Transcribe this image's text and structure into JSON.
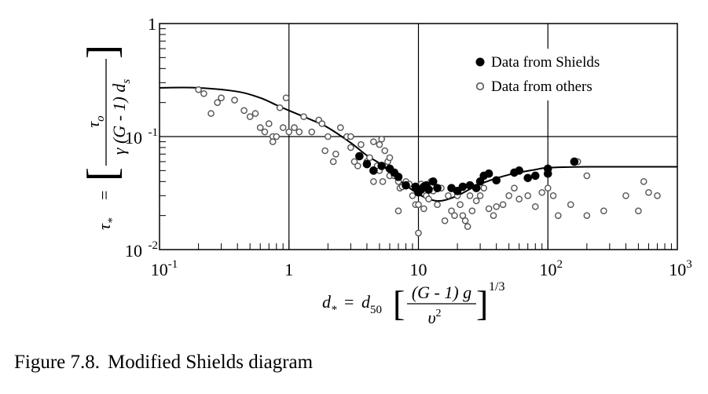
{
  "chart_data": {
    "type": "scatter",
    "title": "",
    "x_scale": "log",
    "y_scale": "log",
    "xlim": [
      0.1,
      1000
    ],
    "ylim": [
      0.01,
      1
    ],
    "grid": "major decades only",
    "legend_position": "top-right",
    "x_ticks": [
      {
        "base": "10",
        "exp": "-1"
      },
      {
        "base": "1",
        "exp": ""
      },
      {
        "base": "10",
        "exp": ""
      },
      {
        "base": "10",
        "exp": "2"
      },
      {
        "base": "10",
        "exp": "3"
      }
    ],
    "y_ticks": [
      {
        "base": "10",
        "exp": "-2"
      },
      {
        "base": "10",
        "exp": "-1"
      },
      {
        "base": "1",
        "exp": ""
      }
    ],
    "xlabel": {
      "lhs": "d",
      "lhs_sub": "*",
      "eq": "=",
      "d50": "d",
      "d50_sub": "50",
      "numerator": "(G - 1) g",
      "denominator": "υ",
      "denominator_sup": "2",
      "power": "1/3"
    },
    "ylabel": {
      "lhs": "τ",
      "lhs_sub": "*",
      "eq": "=",
      "numerator": "τ",
      "numerator_sub": "o",
      "denominator": "γ (G - 1) d",
      "denominator_sub": "s"
    },
    "series": [
      {
        "name": "Data from Shields",
        "marker": "filled-circle",
        "color": "#000000",
        "points": [
          [
            3.5,
            0.067
          ],
          [
            4.0,
            0.057
          ],
          [
            4.5,
            0.05
          ],
          [
            5.2,
            0.055
          ],
          [
            6.0,
            0.052
          ],
          [
            6.5,
            0.048
          ],
          [
            7.0,
            0.044
          ],
          [
            8.0,
            0.037
          ],
          [
            9.5,
            0.036
          ],
          [
            10.0,
            0.032
          ],
          [
            10.5,
            0.034
          ],
          [
            11.0,
            0.036
          ],
          [
            11.5,
            0.037
          ],
          [
            12.0,
            0.034
          ],
          [
            13.0,
            0.04
          ],
          [
            14.0,
            0.035
          ],
          [
            18.0,
            0.035
          ],
          [
            20.0,
            0.033
          ],
          [
            22.0,
            0.036
          ],
          [
            25.0,
            0.037
          ],
          [
            28.0,
            0.035
          ],
          [
            30.0,
            0.04
          ],
          [
            32.0,
            0.045
          ],
          [
            35.0,
            0.047
          ],
          [
            40.0,
            0.041
          ],
          [
            55.0,
            0.048
          ],
          [
            60.0,
            0.05
          ],
          [
            70.0,
            0.043
          ],
          [
            80.0,
            0.045
          ],
          [
            100.0,
            0.047
          ],
          [
            100.0,
            0.052
          ],
          [
            160.0,
            0.06
          ]
        ]
      },
      {
        "name": "Data from others",
        "marker": "open-circle",
        "color": "#555555",
        "points": [
          [
            0.2,
            0.26
          ],
          [
            0.22,
            0.24
          ],
          [
            0.25,
            0.16
          ],
          [
            0.3,
            0.22
          ],
          [
            0.38,
            0.21
          ],
          [
            0.45,
            0.17
          ],
          [
            0.5,
            0.15
          ],
          [
            0.55,
            0.16
          ],
          [
            0.6,
            0.12
          ],
          [
            0.65,
            0.11
          ],
          [
            0.7,
            0.13
          ],
          [
            0.75,
            0.1
          ],
          [
            0.75,
            0.09
          ],
          [
            0.8,
            0.1
          ],
          [
            0.85,
            0.18
          ],
          [
            0.9,
            0.12
          ],
          [
            0.95,
            0.22
          ],
          [
            1.0,
            0.11
          ],
          [
            1.1,
            0.12
          ],
          [
            1.2,
            0.11
          ],
          [
            1.3,
            0.15
          ],
          [
            1.5,
            0.11
          ],
          [
            1.7,
            0.14
          ],
          [
            1.8,
            0.13
          ],
          [
            1.9,
            0.075
          ],
          [
            2.0,
            0.1
          ],
          [
            2.2,
            0.06
          ],
          [
            2.3,
            0.07
          ],
          [
            2.5,
            0.12
          ],
          [
            2.8,
            0.1
          ],
          [
            3.0,
            0.08
          ],
          [
            3.2,
            0.06
          ],
          [
            3.4,
            0.055
          ],
          [
            3.6,
            0.085
          ],
          [
            4.0,
            0.06
          ],
          [
            4.2,
            0.065
          ],
          [
            4.5,
            0.04
          ],
          [
            4.8,
            0.055
          ],
          [
            5.0,
            0.05
          ],
          [
            5.0,
            0.085
          ],
          [
            5.3,
            0.04
          ],
          [
            5.5,
            0.075
          ],
          [
            5.8,
            0.06
          ],
          [
            6.0,
            0.045
          ],
          [
            6.5,
            0.045
          ],
          [
            7.0,
            0.04
          ],
          [
            7.2,
            0.035
          ],
          [
            7.5,
            0.036
          ],
          [
            8.0,
            0.04
          ],
          [
            8.5,
            0.038
          ],
          [
            9.0,
            0.03
          ],
          [
            9.5,
            0.025
          ],
          [
            10.0,
            0.025
          ],
          [
            10.5,
            0.038
          ],
          [
            11.0,
            0.023
          ],
          [
            11.5,
            0.03
          ],
          [
            12.0,
            0.028
          ],
          [
            12.5,
            0.04
          ],
          [
            13.0,
            0.033
          ],
          [
            14.0,
            0.025
          ],
          [
            16.0,
            0.018
          ],
          [
            17.0,
            0.03
          ],
          [
            18.0,
            0.022
          ],
          [
            19.0,
            0.02
          ],
          [
            20.0,
            0.03
          ],
          [
            21.0,
            0.025
          ],
          [
            22.0,
            0.02
          ],
          [
            23.0,
            0.018
          ],
          [
            24.0,
            0.016
          ],
          [
            25.0,
            0.03
          ],
          [
            26.0,
            0.022
          ],
          [
            28.0,
            0.027
          ],
          [
            30.0,
            0.03
          ],
          [
            32.0,
            0.035
          ],
          [
            35.0,
            0.023
          ],
          [
            38.0,
            0.02
          ],
          [
            40.0,
            0.024
          ],
          [
            45.0,
            0.025
          ],
          [
            50.0,
            0.03
          ],
          [
            55.0,
            0.035
          ],
          [
            60.0,
            0.028
          ],
          [
            70.0,
            0.03
          ],
          [
            80.0,
            0.024
          ],
          [
            90.0,
            0.032
          ],
          [
            100.0,
            0.035
          ],
          [
            110.0,
            0.03
          ],
          [
            120.0,
            0.02
          ],
          [
            150.0,
            0.025
          ],
          [
            170.0,
            0.06
          ],
          [
            200.0,
            0.045
          ],
          [
            200.0,
            0.02
          ],
          [
            270.0,
            0.022
          ],
          [
            400.0,
            0.03
          ],
          [
            500.0,
            0.022
          ],
          [
            550.0,
            0.04
          ],
          [
            600.0,
            0.032
          ],
          [
            700.0,
            0.03
          ],
          [
            10.0,
            0.014
          ],
          [
            7.0,
            0.022
          ],
          [
            15.0,
            0.035
          ],
          [
            3.0,
            0.1
          ],
          [
            4.5,
            0.09
          ],
          [
            6.0,
            0.065
          ],
          [
            5.2,
            0.095
          ],
          [
            0.28,
            0.2
          ]
        ]
      }
    ],
    "curve": {
      "name": "Shields curve",
      "points": [
        [
          0.1,
          0.27
        ],
        [
          0.2,
          0.27
        ],
        [
          0.4,
          0.25
        ],
        [
          0.6,
          0.22
        ],
        [
          0.8,
          0.19
        ],
        [
          1.0,
          0.17
        ],
        [
          1.5,
          0.14
        ],
        [
          2.0,
          0.12
        ],
        [
          3.0,
          0.088
        ],
        [
          4.0,
          0.068
        ],
        [
          5.0,
          0.058
        ],
        [
          6.0,
          0.049
        ],
        [
          7.0,
          0.042
        ],
        [
          8.0,
          0.037
        ],
        [
          10.0,
          0.031
        ],
        [
          12.0,
          0.028
        ],
        [
          15.0,
          0.027
        ],
        [
          20.0,
          0.03
        ],
        [
          30.0,
          0.038
        ],
        [
          50.0,
          0.046
        ],
        [
          80.0,
          0.051
        ],
        [
          100.0,
          0.053
        ],
        [
          200.0,
          0.054
        ],
        [
          400.0,
          0.054
        ],
        [
          1000.0,
          0.054
        ]
      ]
    }
  },
  "legend": {
    "items": [
      {
        "label": "Data from Shields",
        "marker": "filled-circle"
      },
      {
        "label": "Data from others",
        "marker": "open-circle"
      }
    ]
  },
  "caption": {
    "figure_number": "Figure 7.8.",
    "title": "Modified Shields diagram"
  }
}
